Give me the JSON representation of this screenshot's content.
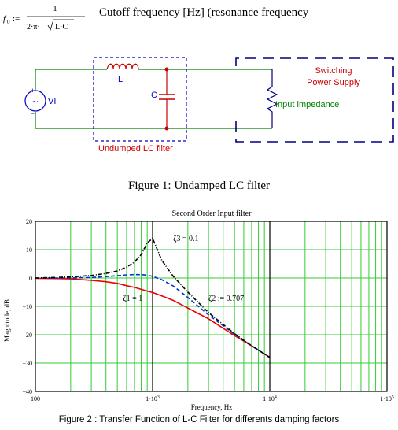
{
  "formula": {
    "lhs": "f",
    "lhs_sub": "0",
    "assign": ":=",
    "numerator": "1",
    "den_prefix": "2·π·",
    "den_radicand": "L·C",
    "description": "Cutoff frequency [Hz]  (resonance frequency"
  },
  "circuit": {
    "source_label": "VI",
    "source_plus": "+",
    "source_minus": "−",
    "inductor_label": "L",
    "capacitor_label": "C",
    "filter_box_label": "Undumped LC filter",
    "smps_label_line1": "Switching",
    "smps_label_line2": "Power Supply",
    "load_label": "Input impedance",
    "colors": {
      "wire": "#008000",
      "box": "#0000c0",
      "label_red": "#cc0000",
      "node": "#cc0000",
      "smps": "#000080"
    }
  },
  "figure1_caption": "Figure 1: Undamped LC filter",
  "figure2_caption": "Figure 2 : Transfer Function of L-C Filter for differents damping factors",
  "chart_data": {
    "type": "line",
    "title": "Second Order Input filter",
    "xlabel": "Frequency, Hz",
    "ylabel": "Magnitude, dB",
    "xscale": "log",
    "xlim": [
      100,
      100000
    ],
    "ylim": [
      -40,
      20
    ],
    "grid": true,
    "x_ticks": [
      {
        "label": "100",
        "pow": ""
      },
      {
        "label": "1·10",
        "pow": "3"
      },
      {
        "label": "1·10",
        "pow": "4"
      },
      {
        "label": "1·10",
        "pow": "5"
      }
    ],
    "y_ticks": [
      "20",
      "10",
      "0",
      "−10",
      "−20",
      "−30",
      "−40"
    ],
    "cutoff_hz": 1000,
    "x": [
      100,
      150,
      200,
      300,
      400,
      500,
      600,
      700,
      800,
      900,
      1000,
      1200,
      1500,
      2000,
      3000,
      5000,
      7000,
      10000
    ],
    "series": [
      {
        "name": "ζ1 = 1",
        "color": "#ee0000",
        "dash": "",
        "values": [
          -0.1,
          -0.2,
          -0.3,
          -0.8,
          -1.3,
          -1.9,
          -2.7,
          -3.3,
          -4.0,
          -4.6,
          -5.1,
          -6.3,
          -7.9,
          -10.6,
          -14.4,
          -20.3,
          -23.9,
          -28.0
        ]
      },
      {
        "name": "ζ2 = 0.707",
        "color": "#0033cc",
        "dash": "5,3",
        "values": [
          0.0,
          0.0,
          0.0,
          0.2,
          0.5,
          0.8,
          1.1,
          1.2,
          1.2,
          1.0,
          0.6,
          -0.6,
          -2.8,
          -6.9,
          -13.0,
          -19.8,
          -23.9,
          -28.0
        ]
      },
      {
        "name": "ζ3 = 0.1",
        "color": "#000000",
        "dash": "5,2,1,2",
        "values": [
          0.0,
          0.2,
          0.4,
          0.9,
          1.6,
          2.5,
          3.8,
          5.6,
          8.3,
          12.4,
          14.0,
          6.2,
          0.6,
          -5.0,
          -12.2,
          -19.6,
          -23.9,
          -28.0
        ]
      }
    ],
    "annotations": [
      {
        "text": "ζ3  =  0.1",
        "x": 1500,
        "y": 13
      },
      {
        "text": "ζ1  =  1",
        "x": 560,
        "y": -8
      },
      {
        "text": "ζ2  :=  0.707",
        "x": 3000,
        "y": -8
      }
    ],
    "colors": {
      "grid": "#33cc33",
      "frame": "#000000",
      "marker": "#000000"
    }
  }
}
